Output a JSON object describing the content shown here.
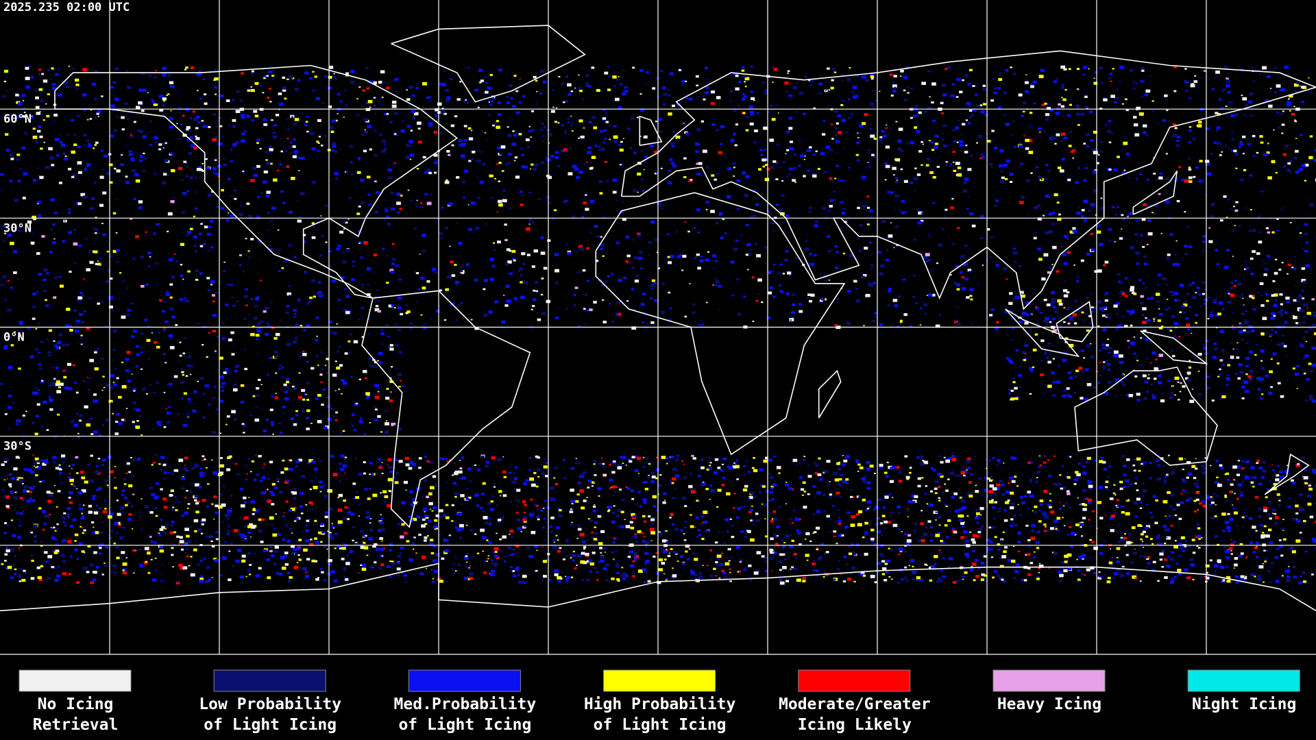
{
  "header": {
    "timestamp": "2025.235 02:00 UTC"
  },
  "latitude_labels": [
    "60°N",
    "30°N",
    "0°N",
    "30°S"
  ],
  "legend": [
    {
      "lines": [
        "No Icing",
        "Retrieval"
      ],
      "color": "#f0f0f0"
    },
    {
      "lines": [
        "Low Probability",
        "of Light Icing"
      ],
      "color": "#0a1070"
    },
    {
      "lines": [
        "Med.Probability",
        "of Light Icing"
      ],
      "color": "#0a10f0"
    },
    {
      "lines": [
        "High Probability",
        "of Light Icing"
      ],
      "color": "#ffff00"
    },
    {
      "lines": [
        "Moderate/Greater",
        "Icing Likely"
      ],
      "color": "#ff0000"
    },
    {
      "lines": [
        "Heavy Icing"
      ],
      "color": "#e8a0e8"
    },
    {
      "lines": [
        "Night Icing"
      ],
      "color": "#00e8e8"
    }
  ]
}
